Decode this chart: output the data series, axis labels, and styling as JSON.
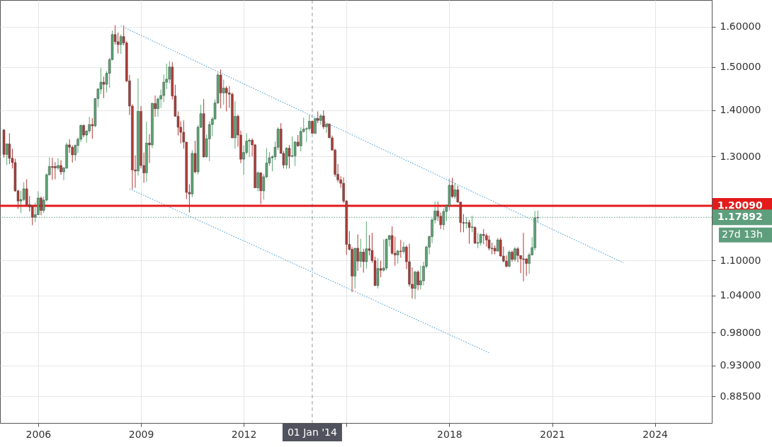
{
  "chart_data": {
    "type": "candlestick",
    "x": [
      "2005-01",
      "2005-02",
      "2005-03",
      "2005-04",
      "2005-05",
      "2005-06",
      "2005-07",
      "2005-08",
      "2005-09",
      "2005-10",
      "2005-11",
      "2005-12",
      "2006-01",
      "2006-02",
      "2006-03",
      "2006-04",
      "2006-05",
      "2006-06",
      "2006-07",
      "2006-08",
      "2006-09",
      "2006-10",
      "2006-11",
      "2006-12",
      "2007-01",
      "2007-02",
      "2007-03",
      "2007-04",
      "2007-05",
      "2007-06",
      "2007-07",
      "2007-08",
      "2007-09",
      "2007-10",
      "2007-11",
      "2007-12",
      "2008-01",
      "2008-02",
      "2008-03",
      "2008-04",
      "2008-05",
      "2008-06",
      "2008-07",
      "2008-08",
      "2008-09",
      "2008-10",
      "2008-11",
      "2008-12",
      "2009-01",
      "2009-02",
      "2009-03",
      "2009-04",
      "2009-05",
      "2009-06",
      "2009-07",
      "2009-08",
      "2009-09",
      "2009-10",
      "2009-11",
      "2009-12",
      "2010-01",
      "2010-02",
      "2010-03",
      "2010-04",
      "2010-05",
      "2010-06",
      "2010-07",
      "2010-08",
      "2010-09",
      "2010-10",
      "2010-11",
      "2010-12",
      "2011-01",
      "2011-02",
      "2011-03",
      "2011-04",
      "2011-05",
      "2011-06",
      "2011-07",
      "2011-08",
      "2011-09",
      "2011-10",
      "2011-11",
      "2011-12",
      "2012-01",
      "2012-02",
      "2012-03",
      "2012-04",
      "2012-05",
      "2012-06",
      "2012-07",
      "2012-08",
      "2012-09",
      "2012-10",
      "2012-11",
      "2012-12",
      "2013-01",
      "2013-02",
      "2013-03",
      "2013-04",
      "2013-05",
      "2013-06",
      "2013-07",
      "2013-08",
      "2013-09",
      "2013-10",
      "2013-11",
      "2013-12",
      "2014-01",
      "2014-02",
      "2014-03",
      "2014-04",
      "2014-05",
      "2014-06",
      "2014-07",
      "2014-08",
      "2014-09",
      "2014-10",
      "2014-11",
      "2014-12",
      "2015-01",
      "2015-02",
      "2015-03",
      "2015-04",
      "2015-05",
      "2015-06",
      "2015-07",
      "2015-08",
      "2015-09",
      "2015-10",
      "2015-11",
      "2015-12",
      "2016-01",
      "2016-02",
      "2016-03",
      "2016-04",
      "2016-05",
      "2016-06",
      "2016-07",
      "2016-08",
      "2016-09",
      "2016-10",
      "2016-11",
      "2016-12",
      "2017-01",
      "2017-02",
      "2017-03",
      "2017-04",
      "2017-05",
      "2017-06",
      "2017-07",
      "2017-08",
      "2017-09",
      "2017-10",
      "2017-11",
      "2017-12",
      "2018-01",
      "2018-02",
      "2018-03",
      "2018-04",
      "2018-05",
      "2018-06",
      "2018-07",
      "2018-08",
      "2018-09",
      "2018-10",
      "2018-11",
      "2018-12",
      "2019-01",
      "2019-02",
      "2019-03",
      "2019-04",
      "2019-05",
      "2019-06",
      "2019-07",
      "2019-08",
      "2019-09",
      "2019-10",
      "2019-11",
      "2019-12",
      "2020-01",
      "2020-02",
      "2020-03",
      "2020-04",
      "2020-05",
      "2020-06",
      "2020-07",
      "2020-08"
    ],
    "ohlc": [
      [
        1.356,
        1.358,
        1.297,
        1.304
      ],
      [
        1.304,
        1.327,
        1.282,
        1.326
      ],
      [
        1.326,
        1.349,
        1.284,
        1.296
      ],
      [
        1.296,
        1.316,
        1.275,
        1.287
      ],
      [
        1.287,
        1.295,
        1.228,
        1.23
      ],
      [
        1.23,
        1.232,
        1.195,
        1.21
      ],
      [
        1.21,
        1.23,
        1.187,
        1.213
      ],
      [
        1.213,
        1.247,
        1.21,
        1.234
      ],
      [
        1.234,
        1.253,
        1.2,
        1.203
      ],
      [
        1.203,
        1.22,
        1.19,
        1.199
      ],
      [
        1.199,
        1.2,
        1.164,
        1.179
      ],
      [
        1.179,
        1.207,
        1.17,
        1.184
      ],
      [
        1.184,
        1.229,
        1.183,
        1.216
      ],
      [
        1.216,
        1.219,
        1.183,
        1.192
      ],
      [
        1.192,
        1.219,
        1.187,
        1.212
      ],
      [
        1.212,
        1.265,
        1.209,
        1.262
      ],
      [
        1.262,
        1.298,
        1.261,
        1.279
      ],
      [
        1.279,
        1.297,
        1.252,
        1.277
      ],
      [
        1.279,
        1.288,
        1.253,
        1.276
      ],
      [
        1.276,
        1.296,
        1.272,
        1.281
      ],
      [
        1.281,
        1.292,
        1.262,
        1.268
      ],
      [
        1.268,
        1.278,
        1.251,
        1.276
      ],
      [
        1.276,
        1.329,
        1.274,
        1.324
      ],
      [
        1.324,
        1.336,
        1.307,
        1.319
      ],
      [
        1.319,
        1.323,
        1.287,
        1.303
      ],
      [
        1.303,
        1.325,
        1.291,
        1.323
      ],
      [
        1.323,
        1.34,
        1.307,
        1.336
      ],
      [
        1.336,
        1.368,
        1.33,
        1.366
      ],
      [
        1.366,
        1.368,
        1.34,
        1.345
      ],
      [
        1.345,
        1.355,
        1.329,
        1.354
      ],
      [
        1.354,
        1.385,
        1.349,
        1.368
      ],
      [
        1.368,
        1.382,
        1.337,
        1.365
      ],
      [
        1.365,
        1.427,
        1.362,
        1.426
      ],
      [
        1.426,
        1.45,
        1.406,
        1.448
      ],
      [
        1.448,
        1.498,
        1.436,
        1.464
      ],
      [
        1.464,
        1.477,
        1.427,
        1.459
      ],
      [
        1.459,
        1.49,
        1.44,
        1.485
      ],
      [
        1.485,
        1.522,
        1.451,
        1.518
      ],
      [
        1.518,
        1.59,
        1.516,
        1.58
      ],
      [
        1.58,
        1.604,
        1.555,
        1.562
      ],
      [
        1.562,
        1.585,
        1.533,
        1.555
      ],
      [
        1.555,
        1.58,
        1.532,
        1.575
      ],
      [
        1.575,
        1.603,
        1.553,
        1.559
      ],
      [
        1.559,
        1.563,
        1.464,
        1.467
      ],
      [
        1.467,
        1.481,
        1.389,
        1.409
      ],
      [
        1.409,
        1.413,
        1.233,
        1.272
      ],
      [
        1.272,
        1.302,
        1.236,
        1.27
      ],
      [
        1.27,
        1.473,
        1.26,
        1.397
      ],
      [
        1.397,
        1.409,
        1.275,
        1.281
      ],
      [
        1.281,
        1.308,
        1.246,
        1.266
      ],
      [
        1.266,
        1.374,
        1.248,
        1.328
      ],
      [
        1.328,
        1.347,
        1.286,
        1.324
      ],
      [
        1.324,
        1.417,
        1.317,
        1.415
      ],
      [
        1.415,
        1.433,
        1.385,
        1.403
      ],
      [
        1.403,
        1.429,
        1.385,
        1.425
      ],
      [
        1.425,
        1.447,
        1.405,
        1.433
      ],
      [
        1.433,
        1.482,
        1.418,
        1.464
      ],
      [
        1.464,
        1.508,
        1.448,
        1.471
      ],
      [
        1.471,
        1.514,
        1.461,
        1.5
      ],
      [
        1.5,
        1.512,
        1.424,
        1.432
      ],
      [
        1.432,
        1.458,
        1.386,
        1.386
      ],
      [
        1.386,
        1.397,
        1.344,
        1.362
      ],
      [
        1.362,
        1.375,
        1.327,
        1.351
      ],
      [
        1.351,
        1.377,
        1.316,
        1.33
      ],
      [
        1.33,
        1.33,
        1.214,
        1.227
      ],
      [
        1.227,
        1.243,
        1.188,
        1.224
      ],
      [
        1.224,
        1.313,
        1.218,
        1.306
      ],
      [
        1.306,
        1.333,
        1.265,
        1.268
      ],
      [
        1.268,
        1.367,
        1.263,
        1.362
      ],
      [
        1.362,
        1.412,
        1.36,
        1.392
      ],
      [
        1.392,
        1.425,
        1.297,
        1.299
      ],
      [
        1.299,
        1.346,
        1.297,
        1.337
      ],
      [
        1.337,
        1.375,
        1.29,
        1.368
      ],
      [
        1.368,
        1.385,
        1.343,
        1.38
      ],
      [
        1.38,
        1.424,
        1.38,
        1.416
      ],
      [
        1.416,
        1.487,
        1.414,
        1.481
      ],
      [
        1.481,
        1.494,
        1.404,
        1.439
      ],
      [
        1.439,
        1.47,
        1.412,
        1.45
      ],
      [
        1.45,
        1.455,
        1.397,
        1.439
      ],
      [
        1.439,
        1.455,
        1.405,
        1.436
      ],
      [
        1.436,
        1.44,
        1.338,
        1.339
      ],
      [
        1.339,
        1.42,
        1.316,
        1.386
      ],
      [
        1.386,
        1.39,
        1.32,
        1.345
      ],
      [
        1.345,
        1.355,
        1.286,
        1.294
      ],
      [
        1.294,
        1.323,
        1.262,
        1.308
      ],
      [
        1.308,
        1.349,
        1.303,
        1.332
      ],
      [
        1.332,
        1.338,
        1.299,
        1.334
      ],
      [
        1.334,
        1.338,
        1.3,
        1.324
      ],
      [
        1.324,
        1.326,
        1.236,
        1.236
      ],
      [
        1.236,
        1.269,
        1.229,
        1.266
      ],
      [
        1.266,
        1.267,
        1.204,
        1.23
      ],
      [
        1.23,
        1.264,
        1.213,
        1.258
      ],
      [
        1.258,
        1.317,
        1.255,
        1.286
      ],
      [
        1.286,
        1.309,
        1.28,
        1.297
      ],
      [
        1.297,
        1.302,
        1.269,
        1.299
      ],
      [
        1.299,
        1.331,
        1.292,
        1.319
      ],
      [
        1.319,
        1.362,
        1.313,
        1.358
      ],
      [
        1.358,
        1.371,
        1.306,
        1.306
      ],
      [
        1.306,
        1.311,
        1.275,
        1.282
      ],
      [
        1.282,
        1.319,
        1.274,
        1.317
      ],
      [
        1.317,
        1.324,
        1.275,
        1.3
      ],
      [
        1.3,
        1.342,
        1.298,
        1.301
      ],
      [
        1.301,
        1.332,
        1.28,
        1.33
      ],
      [
        1.33,
        1.345,
        1.32,
        1.322
      ],
      [
        1.322,
        1.362,
        1.31,
        1.353
      ],
      [
        1.353,
        1.383,
        1.35,
        1.358
      ],
      [
        1.358,
        1.362,
        1.33,
        1.359
      ],
      [
        1.359,
        1.389,
        1.354,
        1.375
      ],
      [
        1.375,
        1.377,
        1.348,
        1.349
      ],
      [
        1.349,
        1.382,
        1.347,
        1.381
      ],
      [
        1.381,
        1.397,
        1.371,
        1.377
      ],
      [
        1.377,
        1.391,
        1.368,
        1.387
      ],
      [
        1.387,
        1.399,
        1.358,
        1.363
      ],
      [
        1.363,
        1.37,
        1.35,
        1.369
      ],
      [
        1.369,
        1.37,
        1.339,
        1.339
      ],
      [
        1.339,
        1.344,
        1.312,
        1.313
      ],
      [
        1.313,
        1.316,
        1.258,
        1.263
      ],
      [
        1.263,
        1.284,
        1.247,
        1.252
      ],
      [
        1.252,
        1.259,
        1.236,
        1.245
      ],
      [
        1.245,
        1.257,
        1.206,
        1.21
      ],
      [
        1.21,
        1.212,
        1.11,
        1.129
      ],
      [
        1.129,
        1.153,
        1.118,
        1.12
      ],
      [
        1.12,
        1.124,
        1.046,
        1.073
      ],
      [
        1.073,
        1.122,
        1.052,
        1.122
      ],
      [
        1.122,
        1.147,
        1.082,
        1.099
      ],
      [
        1.099,
        1.139,
        1.088,
        1.115
      ],
      [
        1.115,
        1.121,
        1.079,
        1.098
      ],
      [
        1.098,
        1.171,
        1.086,
        1.121
      ],
      [
        1.121,
        1.146,
        1.109,
        1.118
      ],
      [
        1.118,
        1.15,
        1.096,
        1.1
      ],
      [
        1.1,
        1.107,
        1.056,
        1.057
      ],
      [
        1.057,
        1.104,
        1.052,
        1.086
      ],
      [
        1.086,
        1.1,
        1.071,
        1.083
      ],
      [
        1.083,
        1.138,
        1.081,
        1.087
      ],
      [
        1.087,
        1.14,
        1.083,
        1.138
      ],
      [
        1.138,
        1.146,
        1.125,
        1.145
      ],
      [
        1.145,
        1.162,
        1.11,
        1.113
      ],
      [
        1.113,
        1.143,
        1.091,
        1.11
      ],
      [
        1.11,
        1.119,
        1.095,
        1.117
      ],
      [
        1.117,
        1.137,
        1.105,
        1.116
      ],
      [
        1.116,
        1.133,
        1.112,
        1.124
      ],
      [
        1.124,
        1.127,
        1.085,
        1.098
      ],
      [
        1.098,
        1.13,
        1.055,
        1.059
      ],
      [
        1.059,
        1.088,
        1.035,
        1.052
      ],
      [
        1.052,
        1.082,
        1.034,
        1.08
      ],
      [
        1.08,
        1.083,
        1.049,
        1.058
      ],
      [
        1.058,
        1.091,
        1.05,
        1.065
      ],
      [
        1.065,
        1.098,
        1.057,
        1.09
      ],
      [
        1.09,
        1.127,
        1.086,
        1.124
      ],
      [
        1.124,
        1.145,
        1.111,
        1.143
      ],
      [
        1.143,
        1.178,
        1.131,
        1.174
      ],
      [
        1.174,
        1.209,
        1.167,
        1.191
      ],
      [
        1.191,
        1.209,
        1.172,
        1.181
      ],
      [
        1.181,
        1.188,
        1.157,
        1.165
      ],
      [
        1.165,
        1.196,
        1.155,
        1.19
      ],
      [
        1.19,
        1.204,
        1.172,
        1.201
      ],
      [
        1.201,
        1.254,
        1.192,
        1.241
      ],
      [
        1.241,
        1.256,
        1.216,
        1.219
      ],
      [
        1.219,
        1.246,
        1.214,
        1.232
      ],
      [
        1.232,
        1.24,
        1.207,
        1.208
      ],
      [
        1.208,
        1.209,
        1.151,
        1.169
      ],
      [
        1.169,
        1.185,
        1.151,
        1.168
      ],
      [
        1.168,
        1.179,
        1.158,
        1.169
      ],
      [
        1.169,
        1.174,
        1.13,
        1.16
      ],
      [
        1.16,
        1.182,
        1.151,
        1.161
      ],
      [
        1.16,
        1.162,
        1.13,
        1.131
      ],
      [
        1.131,
        1.15,
        1.122,
        1.132
      ],
      [
        1.132,
        1.149,
        1.127,
        1.147
      ],
      [
        1.147,
        1.157,
        1.129,
        1.145
      ],
      [
        1.145,
        1.149,
        1.125,
        1.137
      ],
      [
        1.137,
        1.145,
        1.118,
        1.122
      ],
      [
        1.122,
        1.132,
        1.111,
        1.121
      ],
      [
        1.122,
        1.127,
        1.111,
        1.117
      ],
      [
        1.117,
        1.141,
        1.116,
        1.137
      ],
      [
        1.137,
        1.141,
        1.107,
        1.108
      ],
      [
        1.108,
        1.125,
        1.097,
        1.099
      ],
      [
        1.099,
        1.109,
        1.088,
        1.09
      ],
      [
        1.09,
        1.118,
        1.088,
        1.115
      ],
      [
        1.115,
        1.118,
        1.098,
        1.102
      ],
      [
        1.102,
        1.124,
        1.098,
        1.121
      ],
      [
        1.121,
        1.124,
        1.097,
        1.109
      ],
      [
        1.109,
        1.109,
        1.078,
        1.103
      ],
      [
        1.103,
        1.15,
        1.064,
        1.102
      ],
      [
        1.103,
        1.104,
        1.073,
        1.095
      ],
      [
        1.095,
        1.114,
        1.077,
        1.11
      ],
      [
        1.11,
        1.142,
        1.109,
        1.123
      ],
      [
        1.123,
        1.191,
        1.118,
        1.178
      ],
      [
        1.178,
        1.192,
        1.17,
        1.179
      ]
    ],
    "colors": [
      "#b23a36",
      "#5aa874",
      "#b23a36",
      "#b23a36",
      "#b23a36",
      "#b23a36",
      "#5aa874",
      "#5aa874",
      "#b23a36",
      "#b23a36",
      "#b23a36",
      "#5aa874",
      "#5aa874",
      "#b23a36",
      "#5aa874",
      "#5aa874",
      "#5aa874",
      "#b23a36",
      "#b23a36",
      "#5aa874",
      "#b23a36",
      "#5aa874",
      "#5aa874",
      "#b23a36",
      "#b23a36",
      "#5aa874",
      "#5aa874",
      "#5aa874",
      "#b23a36",
      "#5aa874",
      "#5aa874",
      "#b23a36",
      "#5aa874",
      "#5aa874",
      "#5aa874",
      "#b23a36",
      "#5aa874",
      "#5aa874",
      "#5aa874",
      "#b23a36",
      "#b23a36",
      "#5aa874",
      "#b23a36",
      "#b23a36",
      "#b23a36",
      "#b23a36",
      "#b23a36",
      "#5aa874",
      "#b23a36",
      "#b23a36",
      "#5aa874",
      "#b23a36",
      "#5aa874",
      "#b23a36",
      "#5aa874",
      "#5aa874",
      "#5aa874",
      "#5aa874",
      "#5aa874",
      "#b23a36",
      "#b23a36",
      "#b23a36",
      "#b23a36",
      "#b23a36",
      "#b23a36",
      "#b23a36",
      "#5aa874",
      "#b23a36",
      "#5aa874",
      "#5aa874",
      "#b23a36",
      "#5aa874",
      "#5aa874",
      "#5aa874",
      "#5aa874",
      "#5aa874",
      "#b23a36",
      "#5aa874",
      "#b23a36",
      "#b23a36",
      "#b23a36",
      "#5aa874",
      "#b23a36",
      "#b23a36",
      "#5aa874",
      "#5aa874",
      "#5aa874",
      "#b23a36",
      "#b23a36",
      "#5aa874",
      "#b23a36",
      "#5aa874",
      "#5aa874",
      "#5aa874",
      "#5aa874",
      "#5aa874",
      "#5aa874",
      "#b23a36",
      "#b23a36",
      "#5aa874",
      "#b23a36",
      "#5aa874",
      "#5aa874",
      "#b23a36",
      "#5aa874",
      "#5aa874",
      "#5aa874",
      "#5aa874",
      "#b23a36",
      "#5aa874",
      "#b23a36",
      "#5aa874",
      "#b23a36",
      "#5aa874",
      "#b23a36",
      "#b23a36",
      "#b23a36",
      "#b23a36",
      "#b23a36",
      "#b23a36",
      "#b23a36",
      "#b23a36",
      "#b23a36",
      "#5aa874",
      "#b23a36",
      "#5aa874",
      "#b23a36",
      "#5aa874",
      "#b23a36",
      "#b23a36",
      "#b23a36",
      "#5aa874",
      "#b23a36",
      "#5aa874",
      "#5aa874",
      "#5aa874",
      "#b23a36",
      "#b23a36",
      "#5aa874",
      "#b23a36",
      "#5aa874",
      "#b23a36",
      "#b23a36",
      "#b23a36",
      "#5aa874",
      "#b23a36",
      "#5aa874",
      "#5aa874",
      "#5aa874",
      "#5aa874",
      "#5aa874",
      "#5aa874",
      "#b23a36",
      "#b23a36",
      "#5aa874",
      "#5aa874",
      "#5aa874",
      "#b23a36",
      "#5aa874",
      "#b23a36",
      "#b23a36",
      "#b23a36",
      "#5aa874",
      "#b23a36",
      "#5aa874",
      "#b23a36",
      "#5aa874",
      "#5aa874",
      "#b23a36",
      "#b23a36",
      "#b23a36",
      "#b23a36",
      "#b23a36",
      "#5aa874",
      "#b23a36",
      "#b23a36",
      "#b23a36",
      "#5aa874",
      "#b23a36",
      "#5aa874",
      "#b23a36",
      "#b23a36",
      "#b23a36",
      "#b23a36",
      "#5aa874",
      "#5aa874",
      "#5aa874",
      "#5aa874"
    ],
    "series": [
      {
        "type": "line",
        "x": [
          "2008-06",
          "2023-02"
        ],
        "values": [
          1.602,
          1.096
        ],
        "color": "#5fa8d8",
        "line_style": "dotted"
      },
      {
        "type": "line",
        "x": [
          "2008-09",
          "2019-03"
        ],
        "values": [
          1.234,
          0.949
        ],
        "color": "#5fa8d8",
        "line_style": "dotted"
      }
    ],
    "log": true,
    "xlim": [
      "2004-12-28",
      "2025-07-23"
    ],
    "ylim": [
      0.848,
      1.67
    ],
    "xticks": [
      "2006",
      "2009",
      "2012",
      {
        "value": "2015",
        "label": null
      },
      "2018",
      "2021",
      "2024"
    ],
    "yticks": [
      {
        "value": 1.6,
        "label": "1.60000"
      },
      {
        "value": 1.5,
        "label": "1.50000"
      },
      {
        "value": 1.4,
        "label": "1.40000"
      },
      {
        "value": 1.3,
        "label": "1.30000"
      },
      {
        "value": 1.1,
        "label": "1.10000"
      },
      {
        "value": 1.04,
        "label": "1.04000"
      },
      {
        "value": 0.98,
        "label": "0.98000"
      },
      {
        "value": 0.93,
        "label": "0.93000"
      },
      {
        "value": 0.885,
        "label": "0.88500"
      }
    ],
    "grid": true,
    "ref_lines": [
      {
        "axis": "y",
        "value": 1.2009,
        "label": "1.20090",
        "color": "#e31b1b",
        "line_style": "solid"
      },
      {
        "axis": "y",
        "value": 1.17892,
        "label": "1.17892",
        "color": "#5e9e7c",
        "line_style": "dotted"
      },
      {
        "axis": "x",
        "value": "2014-01-01",
        "label": "01 Jan '14",
        "color": "#50535e",
        "line_style": "dashed"
      }
    ],
    "annotations": [
      "27d 13h"
    ]
  }
}
